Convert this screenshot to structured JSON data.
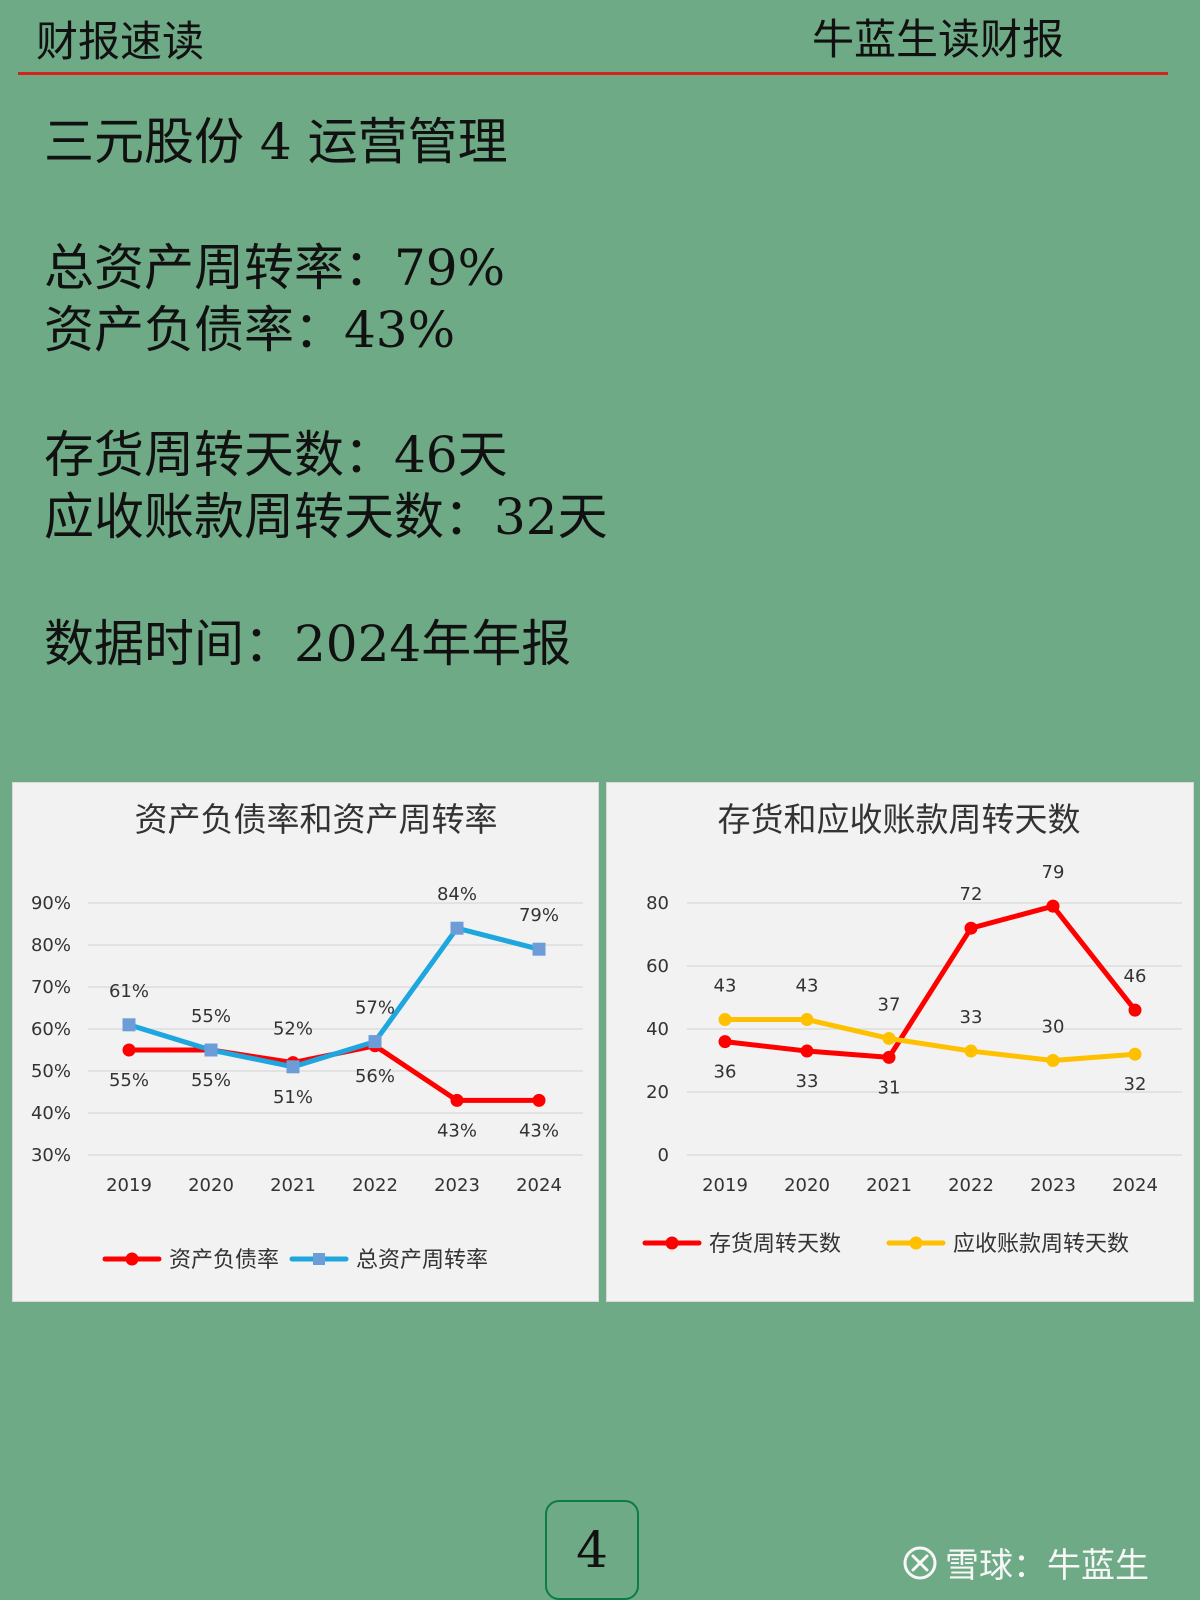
{
  "header": {
    "left": "财报速读",
    "right": "牛蓝生读财报",
    "rule_color": "#d3231f"
  },
  "content": {
    "title": "三元股份 4 运营管理",
    "asset_turnover": "总资产周转率：79%",
    "debt_ratio": "资产负债率：43%",
    "inventory_days": "存货周转天数：46天",
    "receivable_days": "应收账款周转天数：32天",
    "data_time": "数据时间：2024年年报"
  },
  "page": {
    "number": "4"
  },
  "footer": {
    "brand_text": "雪球：牛蓝生",
    "icon_name": "xueqiu-logo-icon"
  },
  "chart_data": [
    {
      "type": "line",
      "title": "资产负债率和资产周转率",
      "categories": [
        "2019",
        "2020",
        "2021",
        "2022",
        "2023",
        "2024"
      ],
      "series": [
        {
          "name": "资产负债率",
          "values": [
            55,
            55,
            52,
            56,
            43,
            43
          ],
          "labels": [
            "55%",
            "55%",
            "52%",
            "56%",
            "43%",
            "43%"
          ],
          "color": "#ff0000",
          "marker": "circle"
        },
        {
          "name": "总资产周转率",
          "values": [
            61,
            55,
            51,
            57,
            84,
            79
          ],
          "labels": [
            "61%",
            "55%",
            "51%",
            "57%",
            "84%",
            "79%"
          ],
          "color": "#1ea6de",
          "marker": "square"
        }
      ],
      "y_ticks": [
        "30%",
        "40%",
        "50%",
        "60%",
        "70%",
        "80%",
        "90%"
      ],
      "ylim": [
        30,
        90
      ],
      "grid": true,
      "legend": "bottom"
    },
    {
      "type": "line",
      "title": "存货和应收账款周转天数",
      "categories": [
        "2019",
        "2020",
        "2021",
        "2022",
        "2023",
        "2024"
      ],
      "series": [
        {
          "name": "存货周转天数",
          "values": [
            36,
            33,
            31,
            72,
            79,
            46
          ],
          "labels": [
            "36",
            "33",
            "31",
            "72",
            "79",
            "46"
          ],
          "color": "#ff0000",
          "marker": "circle"
        },
        {
          "name": "应收账款周转天数",
          "values": [
            43,
            43,
            37,
            33,
            30,
            32
          ],
          "labels": [
            "43",
            "43",
            "37",
            "33",
            "30",
            "32"
          ],
          "color": "#ffc000",
          "marker": "circle"
        }
      ],
      "y_ticks": [
        "0",
        "20",
        "40",
        "60",
        "80"
      ],
      "ylim": [
        0,
        80
      ],
      "grid": true,
      "legend": "bottom"
    }
  ]
}
